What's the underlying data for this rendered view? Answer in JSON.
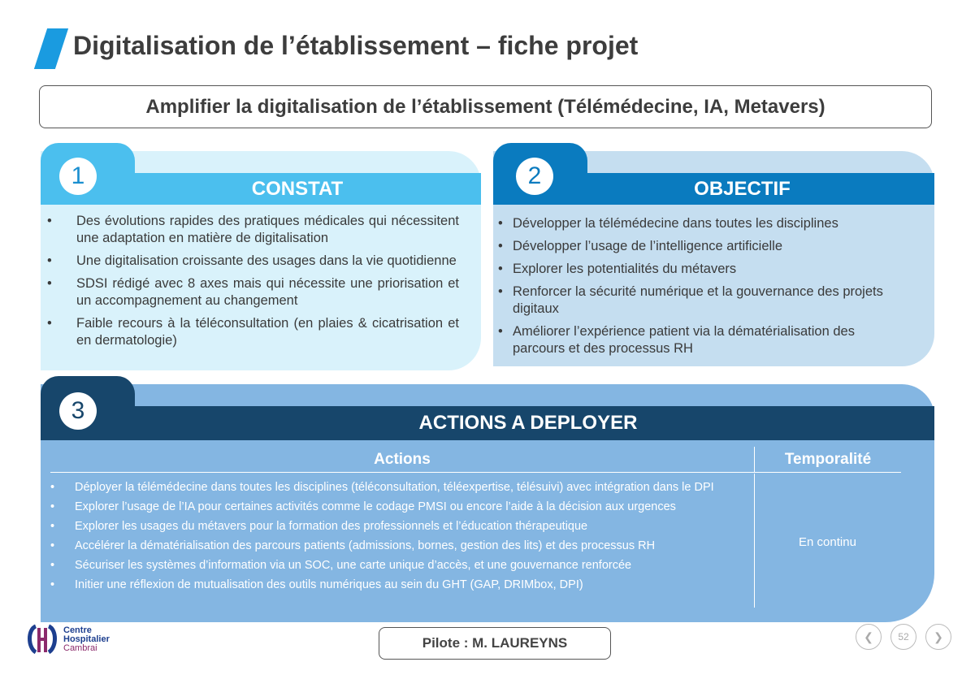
{
  "title": "Digitalisation de l’établissement – fiche projet",
  "subtitle": "Amplifier la digitalisation de l’établissement (Télémédecine, IA, Metavers)",
  "colors": {
    "accent": "#1a9be0",
    "constat": "#4bbfee",
    "constat_bg": "#d9f2fb",
    "objectif": "#0a7bbf",
    "objectif_bg": "#c5def0",
    "actions": "#17466b",
    "actions_bg": "#84b6e2"
  },
  "constat": {
    "number": "1",
    "title": "CONSTAT",
    "items": [
      "Des évolutions rapides des pratiques médicales qui nécessitent une adaptation en matière de digitalisation",
      "Une digitalisation croissante des usages dans la vie quotidienne",
      "SDSI rédigé avec 8 axes mais qui nécessite une priorisation et un accompagnement au changement",
      "Faible recours à la téléconsultation (en plaies & cicatrisation et en dermatologie)"
    ]
  },
  "objectif": {
    "number": "2",
    "title": "OBJECTIF",
    "items": [
      "Développer la télémédecine dans toutes les disciplines",
      "Développer l’usage de l’intelligence artificielle",
      "Explorer les potentialités du métavers",
      "Renforcer la sécurité numérique et la gouvernance des projets digitaux",
      "Améliorer l’expérience patient via la dématérialisation des parcours et des processus RH"
    ]
  },
  "actions": {
    "number": "3",
    "title": "ACTIONS A DEPLOYER",
    "col_actions": "Actions",
    "col_temporalite": "Temporalité",
    "temporalite": "En continu",
    "items": [
      "Déployer la télémédecine dans toutes les disciplines (téléconsultation, téléexpertise, télésuivi) avec intégration dans le DPI",
      "Explorer l’usage de l’IA pour certaines activités comme le codage PMSI ou encore l’aide à la décision aux urgences",
      "Explorer les usages du métavers pour la formation des professionnels et l’éducation thérapeutique",
      "Accélérer la dématérialisation des parcours patients (admissions, bornes, gestion des lits) et des processus RH",
      "Sécuriser les systèmes d’information via un SOC, une carte unique d’accès, et une gouvernance renforcée",
      "Initier une réflexion de mutualisation des outils numériques au sein du GHT (GAP, DRIMbox, DPI)"
    ]
  },
  "footer": {
    "logo_text": [
      "Centre",
      "Hospitalier",
      "Cambrai"
    ],
    "pilote": "Pilote : M. LAUREYNS",
    "page": "52",
    "icons": {
      "prev": "chevron-left-icon",
      "next": "chevron-right-icon"
    }
  }
}
